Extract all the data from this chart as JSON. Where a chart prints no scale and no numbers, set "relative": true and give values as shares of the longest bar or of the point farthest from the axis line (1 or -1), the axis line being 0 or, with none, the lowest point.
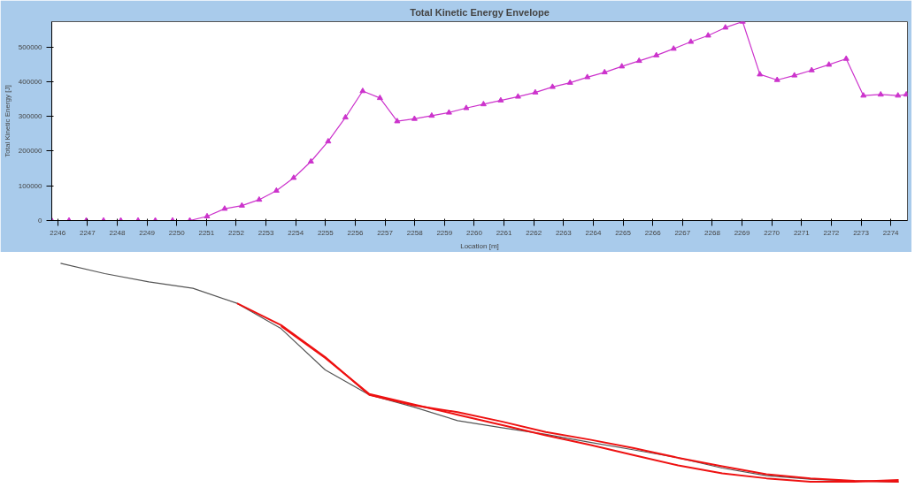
{
  "chart_data": [
    {
      "type": "line",
      "title": "Total Kinetic Energy Envelope",
      "xlabel": "Location [m]",
      "ylabel": "Total Kinetic Energy [J]",
      "xlim": [
        2245.8,
        2274.56
      ],
      "ylim": [
        0,
        573000
      ],
      "xticks": [
        2246,
        2247,
        2248,
        2249,
        2250,
        2251,
        2252,
        2253,
        2254,
        2255,
        2256,
        2257,
        2258,
        2259,
        2260,
        2261,
        2262,
        2263,
        2264,
        2265,
        2266,
        2267,
        2268,
        2269,
        2270,
        2271,
        2272,
        2273,
        2274
      ],
      "yticks": [
        0,
        100000,
        200000,
        300000,
        400000,
        500000
      ],
      "marker": "triangle",
      "series": [
        {
          "color": "#cc33cc",
          "x": [
            2245.8,
            2246.38,
            2246.96,
            2247.54,
            2248.12,
            2248.7,
            2249.28,
            2249.86,
            2250.44,
            2251.02,
            2251.61,
            2252.19,
            2252.77,
            2253.35,
            2253.93,
            2254.51,
            2255.09,
            2255.67,
            2256.25,
            2256.83,
            2257.41,
            2257.99,
            2258.57,
            2259.15,
            2259.73,
            2260.31,
            2260.89,
            2261.47,
            2262.05,
            2262.63,
            2263.22,
            2263.8,
            2264.38,
            2264.96,
            2265.54,
            2266.12,
            2266.7,
            2267.28,
            2267.86,
            2268.44,
            2269.02,
            2269.6,
            2270.18,
            2270.76,
            2271.34,
            2271.92,
            2272.5,
            2273.08,
            2273.66,
            2274.24,
            2274.52
          ],
          "values": [
            0,
            0,
            0,
            0,
            0,
            0,
            0,
            0,
            0,
            12000,
            34000,
            43000,
            60000,
            86000,
            123000,
            170000,
            228000,
            297000,
            373000,
            353000,
            286000,
            293000,
            302000,
            311000,
            324000,
            335000,
            346000,
            357000,
            369000,
            385000,
            397000,
            413000,
            427000,
            444000,
            460000,
            476000,
            495000,
            515000,
            533000,
            556000,
            573000,
            421000,
            405000,
            418000,
            433000,
            449000,
            466000,
            360000,
            363000,
            360000,
            363000
          ]
        }
      ]
    },
    {
      "type": "line",
      "relative": true,
      "tick_labels": false,
      "categories": [
        null,
        null,
        null,
        null,
        null,
        null,
        null,
        null,
        null,
        null,
        null,
        null,
        null,
        null,
        null,
        null,
        null,
        null,
        null,
        null
      ],
      "series": [
        {
          "color": "#555555",
          "values": [
            1.0,
            0.953,
            0.915,
            0.886,
            0.817,
            0.701,
            0.512,
            0.398,
            0.343,
            0.28,
            0.248,
            0.217,
            0.181,
            0.146,
            0.11,
            0.063,
            0.028,
            0.012,
            0.004,
            0
          ]
        },
        {
          "color": "#ee1111",
          "values": [
            null,
            null,
            null,
            null,
            0.817,
            0.717,
            0.571,
            0.398,
            0.35,
            0.319,
            0.276,
            0.228,
            0.193,
            0.154,
            0.11,
            0.071,
            0.035,
            0.016,
            0.004,
            0
          ]
        },
        {
          "color": "#ee1111",
          "values": [
            null,
            null,
            null,
            null,
            null,
            0.713,
            0.567,
            0.402,
            0.354,
            0.307,
            0.26,
            0.213,
            0.169,
            0.122,
            0.075,
            0.039,
            0.016,
            0,
            0,
            0.008
          ]
        }
      ]
    }
  ]
}
